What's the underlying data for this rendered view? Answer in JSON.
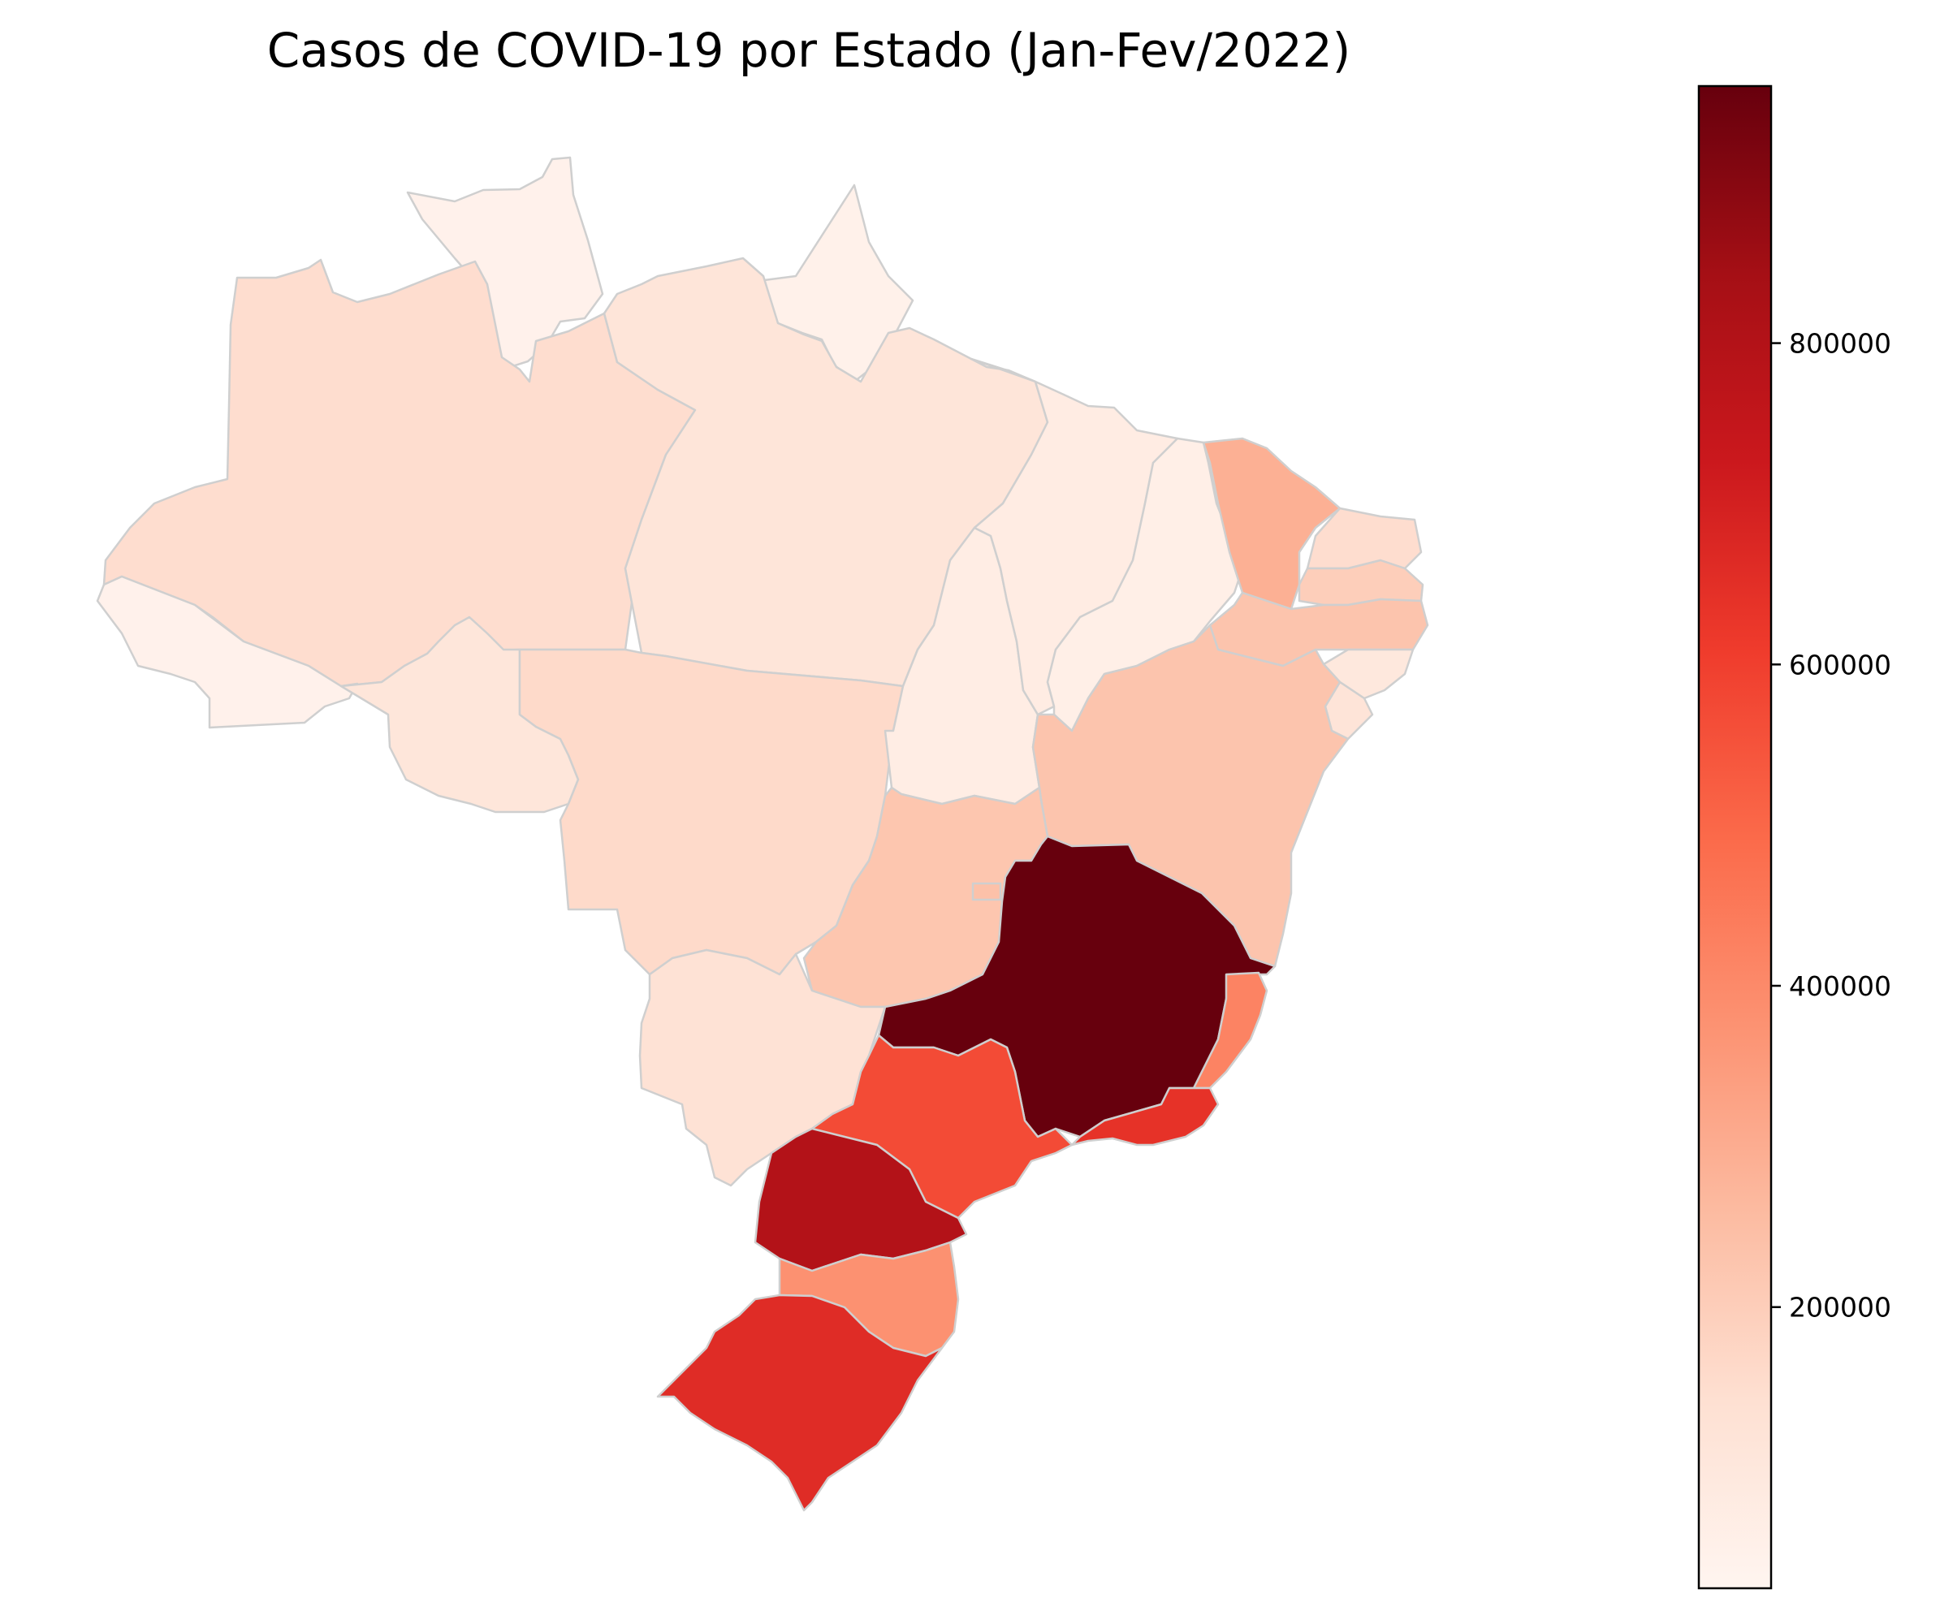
{
  "title": "Casos de COVID-19 por Estado (Jan-Fev/2022)",
  "colorbar": {
    "colormap": "Reds",
    "min": 25000,
    "max": 960000,
    "ticks": [
      {
        "value": 200000,
        "label": "200000"
      },
      {
        "value": 400000,
        "label": "400000"
      },
      {
        "value": 600000,
        "label": "600000"
      },
      {
        "value": 800000,
        "label": "800000"
      }
    ],
    "stops": [
      "#fff5f0",
      "#fee0d2",
      "#fcbba1",
      "#fc9272",
      "#fb6a4a",
      "#ef3b2c",
      "#cb181d",
      "#a50f15",
      "#67000d"
    ]
  },
  "states": [
    {
      "id": "RR",
      "value": 45000
    },
    {
      "id": "AP",
      "value": 50000
    },
    {
      "id": "AM",
      "value": 150000
    },
    {
      "id": "PA",
      "value": 115000
    },
    {
      "id": "AC",
      "value": 45000
    },
    {
      "id": "RO",
      "value": 110000
    },
    {
      "id": "MT",
      "value": 160000
    },
    {
      "id": "TO",
      "value": 70000
    },
    {
      "id": "MA",
      "value": 75000
    },
    {
      "id": "PI",
      "value": 60000
    },
    {
      "id": "CE",
      "value": 290000
    },
    {
      "id": "RN",
      "value": 150000
    },
    {
      "id": "PB",
      "value": 200000
    },
    {
      "id": "PE",
      "value": 230000
    },
    {
      "id": "AL",
      "value": 100000
    },
    {
      "id": "SE",
      "value": 120000
    },
    {
      "id": "BA",
      "value": 230000
    },
    {
      "id": "GO",
      "value": 225000
    },
    {
      "id": "DF",
      "value": 240000
    },
    {
      "id": "MS",
      "value": 130000
    },
    {
      "id": "MG",
      "value": 960000
    },
    {
      "id": "ES",
      "value": 420000
    },
    {
      "id": "RJ",
      "value": 640000
    },
    {
      "id": "SP",
      "value": 570000
    },
    {
      "id": "PR",
      "value": 800000
    },
    {
      "id": "SC",
      "value": 380000
    },
    {
      "id": "RS",
      "value": 660000
    }
  ]
}
